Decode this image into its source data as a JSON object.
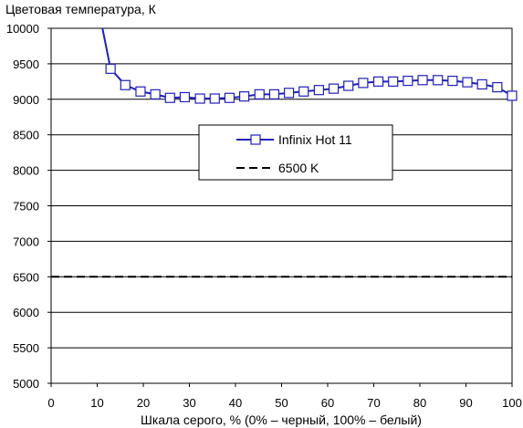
{
  "chart_data": {
    "type": "line",
    "title": "",
    "ylabel": "Цветовая температура, К",
    "xlabel": "Шкала серого, % (0% – черный, 100% – белый)",
    "xlim": [
      0,
      100
    ],
    "ylim": [
      5000,
      10000
    ],
    "x_ticks": [
      0,
      10,
      20,
      30,
      40,
      50,
      60,
      70,
      80,
      90,
      100
    ],
    "y_ticks": [
      5000,
      5500,
      6000,
      6500,
      7000,
      7500,
      8000,
      8500,
      9000,
      9500,
      10000
    ],
    "grid": {
      "horizontal": true,
      "vertical": false
    },
    "legend_position": "center-right",
    "series": [
      {
        "name": "Infinix Hot 11",
        "color": "#1f1fbf",
        "marker": "square",
        "x": [
          6.5,
          12.9,
          16.1,
          19.4,
          22.6,
          25.8,
          29.0,
          32.3,
          35.5,
          38.7,
          41.9,
          45.2,
          48.4,
          51.6,
          54.8,
          58.1,
          61.3,
          64.5,
          67.7,
          71.0,
          74.2,
          77.4,
          80.6,
          83.9,
          87.1,
          90.3,
          93.5,
          96.8,
          100.0
        ],
        "values": [
          11500,
          9430,
          9200,
          9110,
          9070,
          9020,
          9030,
          9010,
          9010,
          9020,
          9040,
          9070,
          9070,
          9090,
          9110,
          9130,
          9150,
          9190,
          9230,
          9250,
          9250,
          9260,
          9270,
          9270,
          9260,
          9240,
          9210,
          9170,
          9050
        ],
        "markers_from_index": 1
      },
      {
        "name": "6500 K",
        "color": "#000000",
        "dash": "dashed",
        "x": [
          0,
          100
        ],
        "values": [
          6500,
          6500
        ]
      }
    ]
  }
}
